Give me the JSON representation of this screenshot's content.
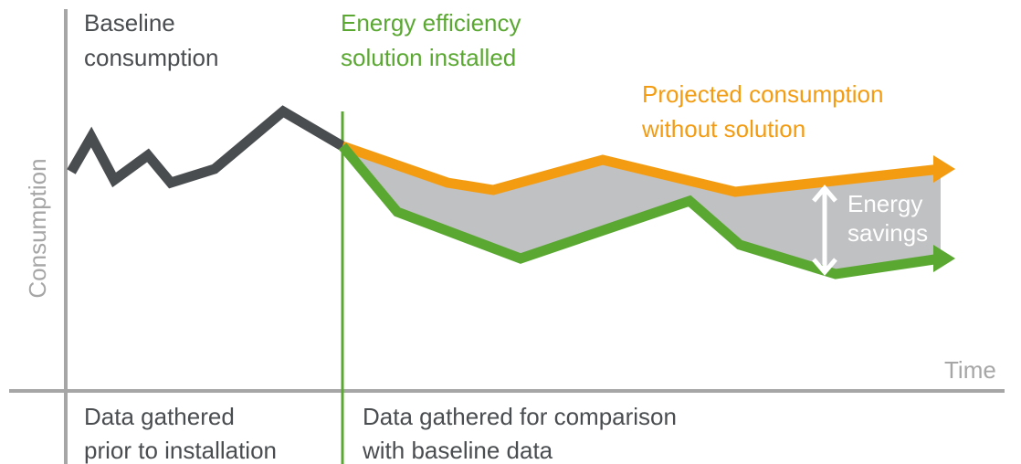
{
  "axes": {
    "y_label": "Consumption",
    "x_label": "Time"
  },
  "labels": {
    "baseline": [
      "Baseline",
      "consumption"
    ],
    "installed": [
      "Energy efficiency",
      "solution installed"
    ],
    "projected": [
      "Projected consumption",
      "without solution"
    ],
    "savings": [
      "Energy",
      "savings"
    ],
    "before": [
      "Data gathered",
      "prior to installation"
    ],
    "after": [
      "Data gathered for comparison",
      "with baseline data"
    ]
  }
}
